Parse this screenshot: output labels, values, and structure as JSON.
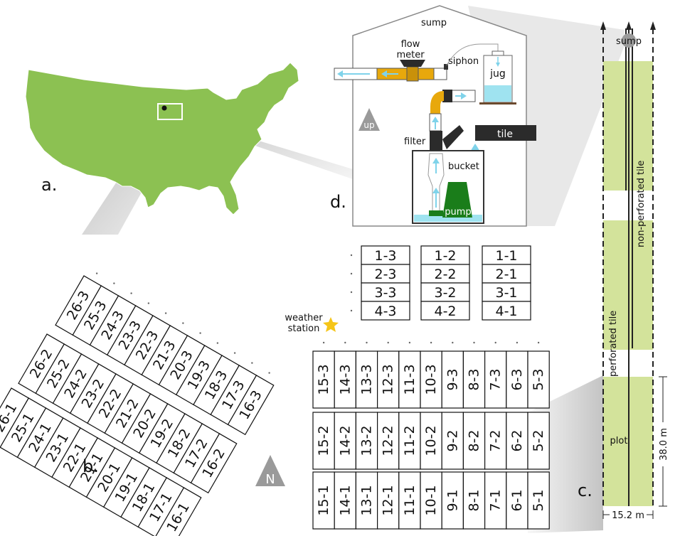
{
  "panels": {
    "a": "a.",
    "b": "b.",
    "c": "c.",
    "d": "d."
  },
  "schematic": {
    "sump": "sump",
    "flow_meter_line1": "flow",
    "flow_meter_line2": "meter",
    "siphon": "siphon",
    "jug": "jug",
    "up": "up",
    "tile": "tile",
    "filter": "filter",
    "bucket": "bucket",
    "pump": "pump"
  },
  "north": "N",
  "weather_station_line1": "weather",
  "weather_station_line2": "station",
  "plot_layout": {
    "sump": "sump",
    "non_perforated_tile": "non-perforated tile",
    "perforated_tile": "perforated tile",
    "plot": "plot",
    "length": "38.0 m",
    "width": "15.2 m"
  },
  "grid_top": [
    [
      "1-3",
      "1-2",
      "1-1"
    ],
    [
      "2-3",
      "2-2",
      "2-1"
    ],
    [
      "3-3",
      "3-2",
      "3-1"
    ],
    [
      "4-3",
      "4-2",
      "4-1"
    ]
  ],
  "grid_main_rows": [
    [
      "15-3",
      "14-3",
      "13-3",
      "12-3",
      "11-3",
      "10-3",
      "9-3",
      "8-3",
      "7-3",
      "6-3",
      "5-3"
    ],
    [
      "15-2",
      "14-2",
      "13-2",
      "12-2",
      "11-2",
      "10-2",
      "9-2",
      "8-2",
      "7-2",
      "6-2",
      "5-2"
    ],
    [
      "15-1",
      "14-1",
      "13-1",
      "12-1",
      "11-1",
      "10-1",
      "9-1",
      "8-1",
      "7-1",
      "6-1",
      "5-1"
    ]
  ],
  "grid_rotated_rows": [
    [
      "26-3",
      "25-3",
      "24-3",
      "23-3",
      "22-3",
      "21-3",
      "20-3",
      "19-3",
      "18-3",
      "17-3",
      "16-3"
    ],
    [
      "26-2",
      "25-2",
      "24-2",
      "23-2",
      "22-2",
      "21-2",
      "20-2",
      "19-2",
      "18-2",
      "17-2",
      "16-2"
    ],
    [
      "26-1",
      "25-1",
      "24-1",
      "23-1",
      "22-1",
      "21-1",
      "20-1",
      "19-1",
      "18-1",
      "17-1",
      "16-1"
    ]
  ],
  "colors": {
    "map_green": "#8cc152",
    "plot_green": "#d3e39b",
    "pipe_yellow": "#e8a80c",
    "water_blue": "#9fe3f0",
    "pump_green": "#1a7d1a",
    "star": "#f5c518",
    "gray": "#9a9a9a",
    "dark": "#2b2b2b"
  }
}
